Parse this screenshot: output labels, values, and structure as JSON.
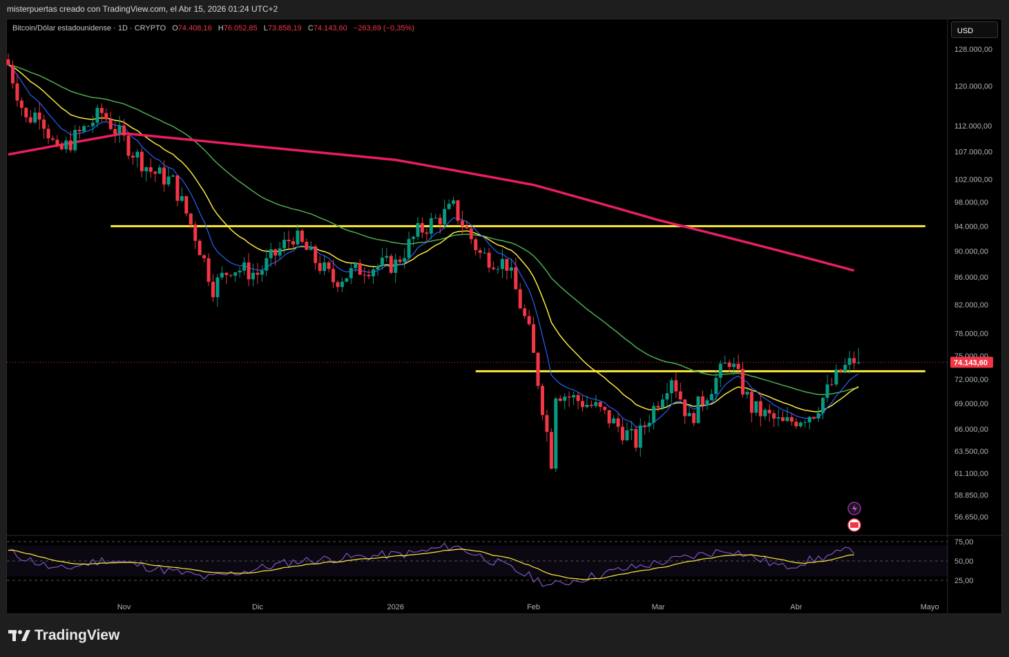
{
  "header": {
    "text": "misterpuertas creado con TradingView.com, el Abr 15, 2026 01:24 UTC+2"
  },
  "legend": {
    "symbol": "Bitcoin/Dólar estadounidense · 1D · CRYPTO",
    "o_label": "O",
    "o_value": "74.408,16",
    "h_label": "H",
    "h_value": "76.052,85",
    "l_label": "L",
    "l_value": "73.858,19",
    "c_label": "C",
    "c_value": "74.143,60",
    "change": "−263,69 (−0,35%)"
  },
  "currency": "USD",
  "brand": {
    "name": "TradingView"
  },
  "colors": {
    "up": "#089981",
    "down": "#f23645",
    "ema_fast": "#2962ff",
    "ema_yellow": "#ffeb3b",
    "ma_green": "#4caf50",
    "ma_200": "#e91e63",
    "hline": "#ffeb3b",
    "rsi": "#7e57c2",
    "rsi_ma": "#ffeb3b"
  },
  "chart_data": {
    "type": "candlestick",
    "symbol": "BTCUSD",
    "interval": "1D",
    "price_axis": {
      "scale": "log",
      "ticks": [
        128000,
        120000,
        112000,
        107000,
        102000,
        98000,
        94000,
        90000,
        86000,
        82000,
        78000,
        75000,
        72000,
        69000,
        66000,
        63500,
        61100,
        58850,
        56650
      ],
      "tick_labels": [
        "128.000,00",
        "120.000,00",
        "112.000,00",
        "107.000,00",
        "102.000,00",
        "98.000,00",
        "94.000,00",
        "90.000,00",
        "86.000,00",
        "82.000,00",
        "78.000,00",
        "75.000,00",
        "72.000,00",
        "69.000,00",
        "66.000,00",
        "63.500,00",
        "61.100,00",
        "58.850,00",
        "56.650,00"
      ]
    },
    "last_price": 74143.6,
    "last_price_label": "74.143,60",
    "x_axis": {
      "labels": [
        "Nov",
        "Dic",
        "2026",
        "Feb",
        "Mar",
        "Abr",
        "Mayo"
      ],
      "label_dates": [
        "2025-11-01",
        "2025-12-01",
        "2026-01-01",
        "2026-02-01",
        "2026-03-01",
        "2026-04-01",
        "2026-05-01"
      ]
    },
    "horizontal_lines": [
      {
        "price": 94000,
        "from": "2025-10-29",
        "to": "2026-04-30"
      },
      {
        "price": 73000,
        "from": "2026-01-19",
        "to": "2026-04-30"
      }
    ],
    "candles_close_keyframes": [
      {
        "date": "2025-10-06",
        "close": 124500
      },
      {
        "date": "2025-10-10",
        "close": 113000
      },
      {
        "date": "2025-10-13",
        "close": 115000
      },
      {
        "date": "2025-10-17",
        "close": 106500
      },
      {
        "date": "2025-10-27",
        "close": 114500
      },
      {
        "date": "2025-11-03",
        "close": 107000
      },
      {
        "date": "2025-11-07",
        "close": 103500
      },
      {
        "date": "2025-11-12",
        "close": 101500
      },
      {
        "date": "2025-11-17",
        "close": 92500
      },
      {
        "date": "2025-11-21",
        "close": 84500
      },
      {
        "date": "2025-11-25",
        "close": 87500
      },
      {
        "date": "2025-12-01",
        "close": 86500
      },
      {
        "date": "2025-12-09",
        "close": 92500
      },
      {
        "date": "2025-12-14",
        "close": 88500
      },
      {
        "date": "2025-12-18",
        "close": 85500
      },
      {
        "date": "2025-12-25",
        "close": 87500
      },
      {
        "date": "2026-01-01",
        "close": 88000
      },
      {
        "date": "2026-01-06",
        "close": 93000
      },
      {
        "date": "2026-01-14",
        "close": 97000
      },
      {
        "date": "2026-01-20",
        "close": 89500
      },
      {
        "date": "2026-01-26",
        "close": 88000
      },
      {
        "date": "2026-01-31",
        "close": 78000
      },
      {
        "date": "2026-02-05",
        "close": 62500
      },
      {
        "date": "2026-02-06",
        "close": 70500
      },
      {
        "date": "2026-02-15",
        "close": 68500
      },
      {
        "date": "2026-02-24",
        "close": 64500
      },
      {
        "date": "2026-03-04",
        "close": 72500
      },
      {
        "date": "2026-03-08",
        "close": 67000
      },
      {
        "date": "2026-03-17",
        "close": 74500
      },
      {
        "date": "2026-03-22",
        "close": 68500
      },
      {
        "date": "2026-03-29",
        "close": 66500
      },
      {
        "date": "2026-04-05",
        "close": 68000
      },
      {
        "date": "2026-04-11",
        "close": 73000
      },
      {
        "date": "2026-04-14",
        "close": 74408
      },
      {
        "date": "2026-04-15",
        "close": 74143.6
      }
    ],
    "last_candle": {
      "date": "2026-04-15",
      "open": 74408.16,
      "high": 76052.85,
      "low": 73858.19,
      "close": 74143.6
    },
    "indicators": [
      {
        "name": "EMA fast",
        "color": "#2962ff"
      },
      {
        "name": "EMA",
        "color": "#ffeb3b"
      },
      {
        "name": "MA",
        "color": "#4caf50"
      },
      {
        "name": "MA 200",
        "color": "#e91e63",
        "keyframes": [
          {
            "date": "2025-10-06",
            "value": 106500
          },
          {
            "date": "2025-11-01",
            "value": 110500
          },
          {
            "date": "2025-12-01",
            "value": 108000
          },
          {
            "date": "2026-01-01",
            "value": 105500
          },
          {
            "date": "2026-02-01",
            "value": 101000
          },
          {
            "date": "2026-03-01",
            "value": 95000
          },
          {
            "date": "2026-04-14",
            "value": 87000
          }
        ]
      }
    ],
    "rsi_panel": {
      "tick_labels": [
        "75,00",
        "50,00",
        "25,00"
      ],
      "ticks": [
        75,
        50,
        25
      ],
      "band": [
        30,
        70
      ],
      "rsi_keyframes": [
        {
          "date": "2025-10-06",
          "value": 62
        },
        {
          "date": "2025-10-17",
          "value": 38
        },
        {
          "date": "2025-10-28",
          "value": 52
        },
        {
          "date": "2025-11-20",
          "value": 28
        },
        {
          "date": "2025-12-10",
          "value": 50
        },
        {
          "date": "2026-01-05",
          "value": 60
        },
        {
          "date": "2026-01-14",
          "value": 70
        },
        {
          "date": "2026-01-25",
          "value": 45
        },
        {
          "date": "2026-02-05",
          "value": 18
        },
        {
          "date": "2026-02-20",
          "value": 38
        },
        {
          "date": "2026-03-17",
          "value": 65
        },
        {
          "date": "2026-03-29",
          "value": 42
        },
        {
          "date": "2026-04-14",
          "value": 65
        }
      ]
    }
  }
}
